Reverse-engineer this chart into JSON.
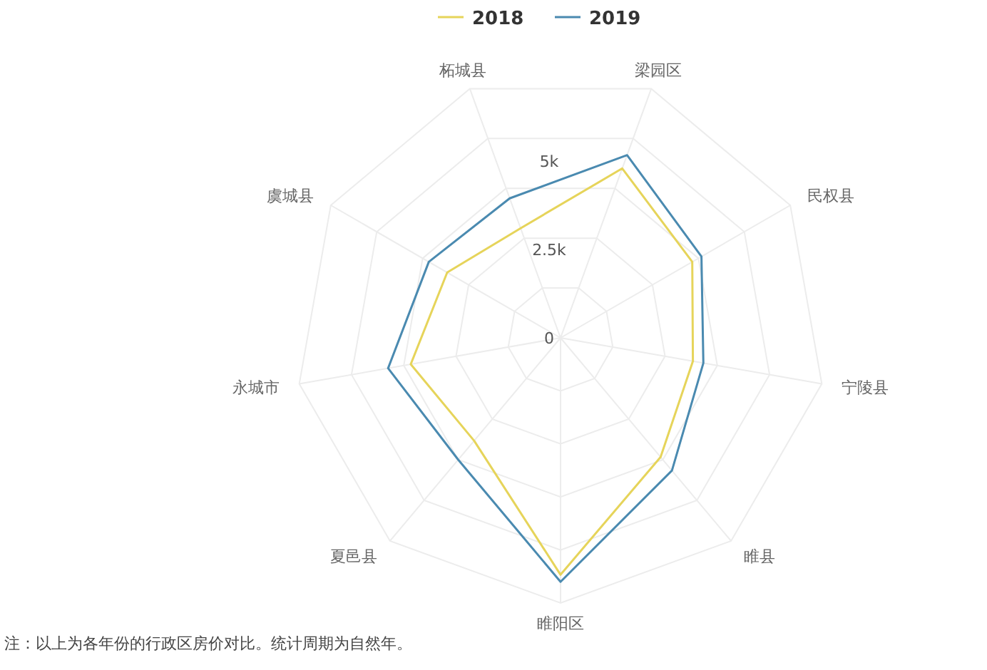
{
  "chart_data": {
    "type": "radar",
    "categories": [
      "梁园区",
      "民权县",
      "宁陵县",
      "睢县",
      "睢阳区",
      "夏邑县",
      "永城市",
      "虞城县",
      "柘城县"
    ],
    "series": [
      {
        "name": "2018",
        "color": "#e6d45a",
        "values": [
          5100,
          4300,
          3800,
          4400,
          6700,
          3800,
          4300,
          3700,
          3300
        ]
      },
      {
        "name": "2019",
        "color": "#4a8ab0",
        "values": [
          5500,
          4600,
          4100,
          4900,
          6900,
          4500,
          4950,
          4300,
          4200
        ]
      }
    ],
    "ylim": [
      0,
      7500
    ],
    "yticks": [
      0,
      {
        "value": 2500,
        "label": "2.5k"
      },
      {
        "value": 5000,
        "label": "5k"
      }
    ],
    "grid": true,
    "legend": "top",
    "marker": "none",
    "line_style": "solid",
    "annotations": [
      "注：以上为各年份的行政区房价对比。统计周期为自然年。"
    ]
  }
}
